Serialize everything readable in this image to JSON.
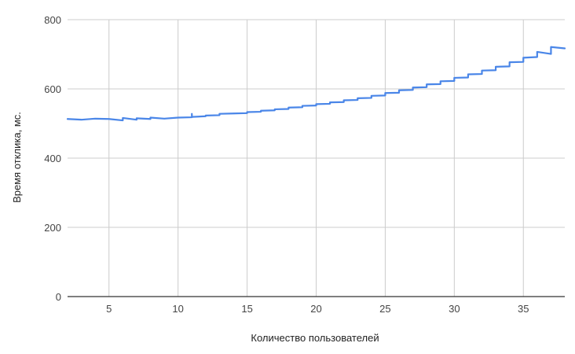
{
  "chart_data": {
    "type": "line",
    "title": "",
    "xlabel": "Количество пользователей",
    "ylabel": "Время отклика, мс.",
    "xlim": [
      2,
      38
    ],
    "ylim": [
      0,
      800
    ],
    "grid": true,
    "legend": "none",
    "x_ticks": [
      5,
      10,
      15,
      20,
      25,
      30,
      35
    ],
    "y_ticks": [
      0,
      200,
      400,
      600,
      800
    ],
    "x_tick_labels": [
      "5",
      "10",
      "15",
      "20",
      "25",
      "30",
      "35"
    ],
    "y_tick_labels": [
      "0",
      "200",
      "400",
      "600",
      "800"
    ],
    "line_color": "#4a86e8",
    "series": [
      {
        "name": "Время отклика",
        "points": [
          [
            2,
            513
          ],
          [
            3,
            511
          ],
          [
            4,
            514
          ],
          [
            5,
            513
          ],
          [
            6,
            509
          ],
          [
            6,
            516
          ],
          [
            7,
            511
          ],
          [
            7,
            515
          ],
          [
            8,
            513
          ],
          [
            8,
            517
          ],
          [
            9,
            514
          ],
          [
            10,
            517
          ],
          [
            11,
            518
          ],
          [
            11,
            528
          ],
          [
            11,
            519
          ],
          [
            12,
            521
          ],
          [
            12,
            523
          ],
          [
            13,
            524
          ],
          [
            13,
            528
          ],
          [
            14,
            529
          ],
          [
            15,
            530
          ],
          [
            15,
            533
          ],
          [
            16,
            534
          ],
          [
            16,
            537
          ],
          [
            17,
            538
          ],
          [
            17,
            541
          ],
          [
            18,
            542
          ],
          [
            18,
            546
          ],
          [
            19,
            547
          ],
          [
            19,
            551
          ],
          [
            20,
            552
          ],
          [
            20,
            556
          ],
          [
            21,
            557
          ],
          [
            21,
            561
          ],
          [
            22,
            562
          ],
          [
            22,
            567
          ],
          [
            23,
            568
          ],
          [
            23,
            573
          ],
          [
            24,
            574
          ],
          [
            24,
            580
          ],
          [
            25,
            581
          ],
          [
            25,
            588
          ],
          [
            26,
            589
          ],
          [
            26,
            596
          ],
          [
            27,
            597
          ],
          [
            27,
            604
          ],
          [
            28,
            605
          ],
          [
            28,
            613
          ],
          [
            29,
            614
          ],
          [
            29,
            622
          ],
          [
            30,
            623
          ],
          [
            30,
            632
          ],
          [
            31,
            633
          ],
          [
            31,
            642
          ],
          [
            32,
            643
          ],
          [
            32,
            653
          ],
          [
            33,
            654
          ],
          [
            33,
            664
          ],
          [
            34,
            665
          ],
          [
            34,
            677
          ],
          [
            35,
            678
          ],
          [
            35,
            690
          ],
          [
            36,
            692
          ],
          [
            36,
            707
          ],
          [
            37,
            701
          ],
          [
            37,
            721
          ],
          [
            38,
            717
          ]
        ]
      }
    ]
  }
}
